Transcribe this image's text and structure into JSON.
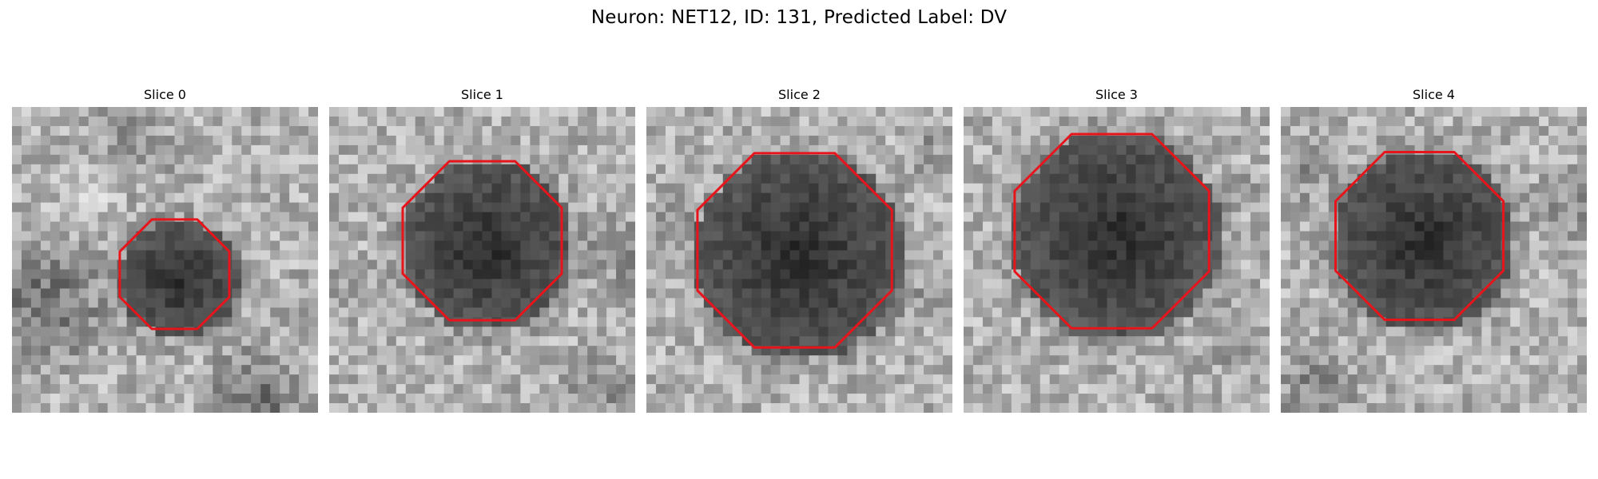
{
  "figure": {
    "title": "Neuron: NET12, ID: 131, Predicted Label: DV"
  },
  "panels": [
    {
      "title": "Slice 0"
    },
    {
      "title": "Slice 1"
    },
    {
      "title": "Slice 2"
    },
    {
      "title": "Slice 3"
    },
    {
      "title": "Slice 4"
    }
  ],
  "colors": {
    "contour": "#e8141b",
    "background": "#ffffff"
  }
}
